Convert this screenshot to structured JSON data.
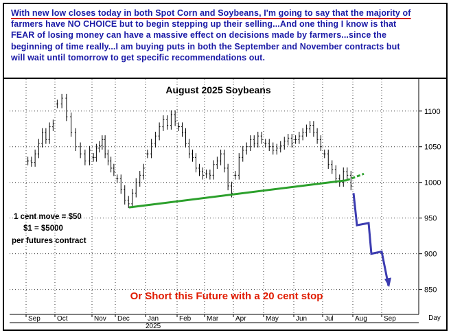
{
  "commentary": {
    "line1": "With new low closes today in both Spot Corn and Soybeans, I'm going to say that the majority of",
    "line2": "farmers have NO CHOICE but to begin stepping up their selling...And one thing I know is that",
    "line3": "FEAR of losing money can have a massive effect on decisions made by farmers...since the",
    "line4": "beginning of time really...I am buying puts in both the September and November contracts but",
    "line5": "will wait until tomorrow to get specific recommendations out."
  },
  "chart_data": {
    "type": "bar",
    "title": "August 2025 Soybeans",
    "x_axis": {
      "months": [
        "Sep",
        "Oct",
        "Nov",
        "Dec",
        "Jan",
        "Feb",
        "Mar",
        "Apr",
        "May",
        "Jun",
        "Jul",
        "Aug",
        "Sep"
      ],
      "year_label": "2025",
      "right_label": "Day"
    },
    "y_axis": {
      "ticks": [
        850,
        900,
        950,
        1000,
        1050,
        1100
      ],
      "ylim": [
        815,
        1145
      ],
      "side": "right"
    },
    "daily_closes": {
      "Sep": [
        1030,
        1028,
        1040,
        1055,
        1070,
        1060,
        1078,
        1082
      ],
      "Oct": [
        1110,
        1118,
        1092,
        1070,
        1050,
        1040,
        1030,
        1045
      ],
      "Nov": [
        1035,
        1048,
        1052,
        1060,
        1040,
        1030,
        1020,
        1015
      ],
      "Dec": [
        1005,
        990,
        975,
        970,
        985,
        1000,
        1010,
        1020
      ],
      "Jan": [
        1040,
        1055,
        1065,
        1078,
        1088,
        1080,
        1095,
        1085
      ],
      "Feb": [
        1078,
        1070,
        1055,
        1040,
        1035,
        1020,
        1015,
        1010
      ],
      "Mar": [
        1012,
        1010,
        1025,
        1030,
        1040,
        1020,
        995,
        985
      ],
      "Apr": [
        1010,
        1035,
        1045,
        1050,
        1060,
        1055,
        1065,
        1060
      ],
      "May": [
        1055,
        1050,
        1045,
        1048,
        1052,
        1058,
        1062,
        1055
      ],
      "Jun": [
        1060,
        1065,
        1070,
        1075,
        1080,
        1070,
        1060,
        1050
      ],
      "Jul": [
        1040,
        1025,
        1018,
        1005,
        1000,
        1015,
        1010,
        995
      ]
    },
    "support_line": {
      "start": 965,
      "end": 1003,
      "extension_end": 1012,
      "color": "#2ca02c"
    },
    "projection_path": [
      985,
      940,
      943,
      900,
      903,
      855
    ],
    "projection_color": "#3b3bb0",
    "annotations": {
      "move_line1": "1 cent move = $50",
      "move_line2": "$1 = $5000",
      "move_line3": "per futures contract",
      "short_note": "Or Short this Future with a 20 cent stop"
    }
  }
}
